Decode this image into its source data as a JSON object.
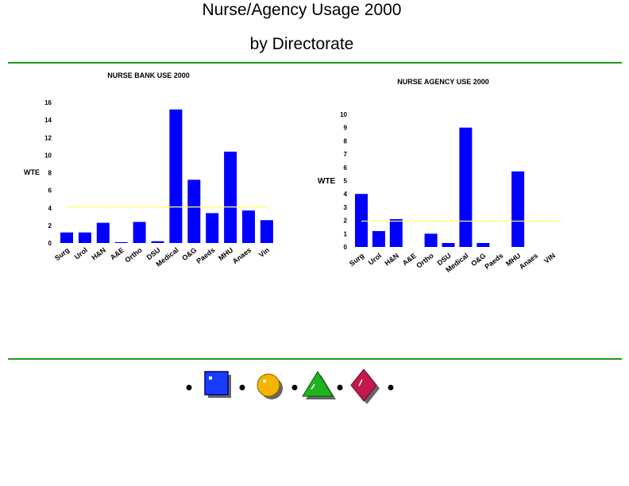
{
  "slide": {
    "title": "Nurse/Agency Usage 2000",
    "subtitle": "by Directorate"
  },
  "colors": {
    "bar": "#0000ff",
    "reference_line": "#ffff66",
    "rule": "#1a9a1a"
  },
  "icons": [
    "bullet-dot",
    "blue-square",
    "yellow-circle",
    "bullet-dot",
    "green-triangle",
    "bullet-dot",
    "crimson-diamond",
    "bullet-dot"
  ],
  "chart_data": [
    {
      "type": "bar",
      "title": "NURSE BANK USE 2000",
      "ylabel": "WTE",
      "categories": [
        "Surg",
        "Urol",
        "H&N",
        "A&E",
        "Ortho",
        "DSU",
        "Medical",
        "O&G",
        "Paeds",
        "MHU",
        "Anaes",
        "Vin"
      ],
      "values": [
        1.2,
        1.2,
        2.3,
        0.1,
        2.4,
        0.2,
        15.2,
        7.2,
        3.4,
        10.4,
        3.7,
        2.6
      ],
      "reference_line": 4.1,
      "ylim": [
        0,
        16
      ],
      "yticks": [
        0,
        2,
        4,
        6,
        8,
        10,
        12,
        14,
        16
      ],
      "grid": false
    },
    {
      "type": "bar",
      "title": "NURSE AGENCY USE 2000",
      "ylabel": "WTE",
      "categories": [
        "Surg",
        "Urol",
        "H&N",
        "A&E",
        "Ortho",
        "DSU",
        "Medical",
        "O&G",
        "Paeds",
        "MHU",
        "Anaes",
        "VIN"
      ],
      "values": [
        4.0,
        1.2,
        2.1,
        0,
        1.0,
        0.3,
        9.0,
        0.3,
        0,
        5.7,
        0,
        0
      ],
      "reference_line": 1.95,
      "ylim": [
        0,
        10
      ],
      "yticks": [
        0,
        1,
        2,
        3,
        4,
        5,
        6,
        7,
        8,
        9,
        10
      ],
      "grid": false
    }
  ]
}
